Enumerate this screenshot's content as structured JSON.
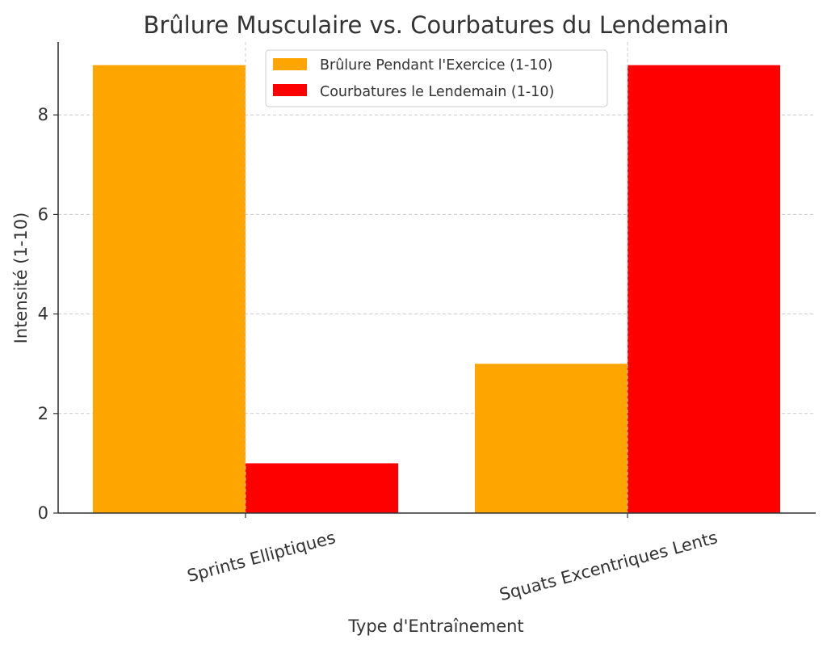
{
  "chart_data": {
    "type": "bar",
    "title": "Brûlure Musculaire vs. Courbatures du Lendemain",
    "xlabel": "Type d'Entraînement",
    "ylabel": "Intensité (1-10)",
    "categories": [
      "Sprints Elliptiques",
      "Squats Excentriques Lents"
    ],
    "series": [
      {
        "name": "Brûlure Pendant l'Exercice (1-10)",
        "color": "#FFA500",
        "values": [
          9,
          3
        ]
      },
      {
        "name": "Courbatures le Lendemain (1-10)",
        "color": "#FF0000",
        "values": [
          1,
          9
        ]
      }
    ],
    "yticks": [
      0,
      2,
      4,
      6,
      8
    ],
    "ylim": [
      0,
      9.45
    ],
    "grid": true,
    "legend_position": "upper center",
    "xtick_rotation": 15
  }
}
